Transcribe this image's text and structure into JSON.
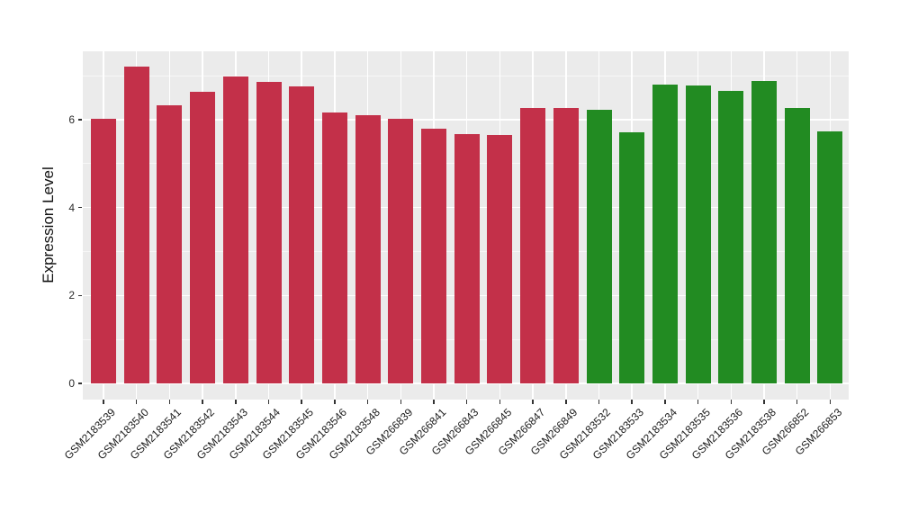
{
  "figure": {
    "title": "",
    "panel_background": "#EBEBEB",
    "gridline_color": "#FFFFFF",
    "tick_color": "#333333",
    "axis_text_color": "#1a1a1a"
  },
  "chart_data": {
    "type": "bar",
    "title": "",
    "xlabel": "",
    "ylabel": "Expression Level",
    "ylim": [
      0,
      7.55
    ],
    "yticks": [
      0,
      2,
      4,
      6
    ],
    "yticks_minor": [
      1,
      3,
      5,
      7
    ],
    "grid": true,
    "legend": false,
    "categories": [
      "GSM2183539",
      "GSM2183540",
      "GSM2183541",
      "GSM2183542",
      "GSM2183543",
      "GSM2183544",
      "GSM2183545",
      "GSM2183546",
      "GSM2183548",
      "GSM266839",
      "GSM266841",
      "GSM266843",
      "GSM266845",
      "GSM266847",
      "GSM266849",
      "GSM2183532",
      "GSM2183533",
      "GSM2183534",
      "GSM2183535",
      "GSM2183536",
      "GSM2183538",
      "GSM266852",
      "GSM266853"
    ],
    "values": [
      6.02,
      7.2,
      6.33,
      6.64,
      6.99,
      6.86,
      6.76,
      6.16,
      6.1,
      6.02,
      5.8,
      5.67,
      5.65,
      6.26,
      6.26,
      6.23,
      5.72,
      6.8,
      6.77,
      6.66,
      6.89,
      6.27,
      5.73
    ],
    "groups": [
      "group1",
      "group1",
      "group1",
      "group1",
      "group1",
      "group1",
      "group1",
      "group1",
      "group1",
      "group1",
      "group1",
      "group1",
      "group1",
      "group1",
      "group1",
      "group2",
      "group2",
      "group2",
      "group2",
      "group2",
      "group2",
      "group2",
      "group2"
    ],
    "group_colors": {
      "group1": "#C33049",
      "group2": "#228B22"
    }
  }
}
